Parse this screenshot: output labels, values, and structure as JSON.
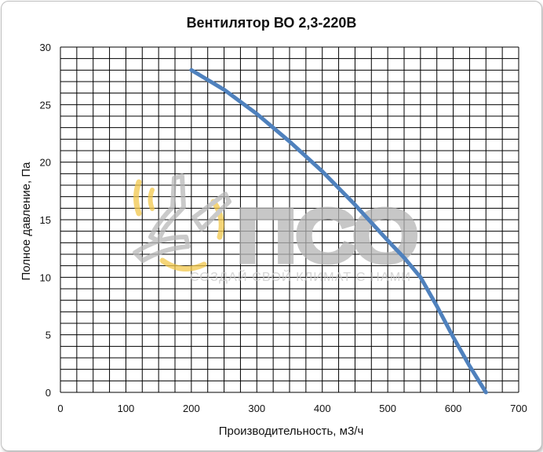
{
  "chart_data": {
    "type": "line",
    "title": "Вентилятор ВО 2,3-220В",
    "xlabel": "Производительность, м3/ч",
    "ylabel": "Полное давление, Па",
    "xlim": [
      0,
      700
    ],
    "ylim": [
      0,
      30
    ],
    "x_ticks": [
      "0",
      "100",
      "200",
      "300",
      "400",
      "500",
      "600",
      "700"
    ],
    "y_ticks": [
      "0",
      "5",
      "10",
      "15",
      "20",
      "25",
      "30"
    ],
    "grid": true,
    "legend": "none",
    "series": [
      {
        "color": "#4f81bd",
        "points": [
          [
            200,
            28
          ],
          [
            250,
            26.3
          ],
          [
            300,
            24.2
          ],
          [
            350,
            21.8
          ],
          [
            400,
            19.2
          ],
          [
            450,
            16.3
          ],
          [
            500,
            13.2
          ],
          [
            525,
            11.7
          ],
          [
            550,
            10
          ],
          [
            575,
            7.5
          ],
          [
            600,
            4.8
          ],
          [
            625,
            2.3
          ],
          [
            650,
            0
          ]
        ]
      }
    ]
  },
  "watermark": {
    "logo": "ПСО",
    "slogan": "СОЗДАЙ СВОЙ КЛИМАТ С НАМИ"
  }
}
